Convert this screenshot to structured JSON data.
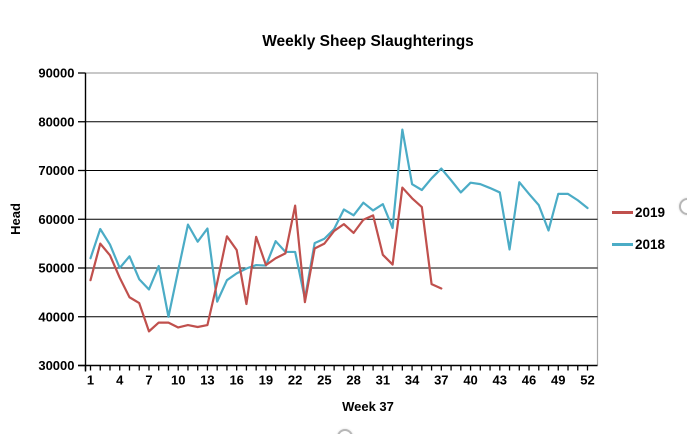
{
  "chart_data": {
    "type": "line",
    "title": "Weekly Sheep Slaughterings",
    "xlabel": "Week 37",
    "ylabel": "Head",
    "ylim": [
      30000,
      90000
    ],
    "xlim": [
      1,
      52
    ],
    "yticks": [
      30000,
      40000,
      50000,
      60000,
      70000,
      80000,
      90000
    ],
    "xticks": [
      1,
      4,
      7,
      10,
      13,
      16,
      19,
      22,
      25,
      28,
      31,
      34,
      37,
      40,
      43,
      46,
      49,
      52
    ],
    "grid": "horizontal",
    "legend_position": "right",
    "x_unit": "week",
    "series": [
      {
        "name": "2019",
        "color": "#C0504D",
        "start_week": 1,
        "values": [
          47500,
          55000,
          52600,
          48000,
          44000,
          42800,
          37000,
          38800,
          38800,
          37800,
          38300,
          37900,
          38300,
          47000,
          56500,
          53700,
          42600,
          56400,
          50600,
          52000,
          53000,
          62800,
          43000,
          54000,
          55000,
          57600,
          59000,
          57200,
          59900,
          60800,
          52700,
          50700,
          66500,
          64300,
          62500,
          46700,
          45800
        ]
      },
      {
        "name": "2018",
        "color": "#4BACC6",
        "start_week": 1,
        "values": [
          52000,
          58000,
          54800,
          50000,
          52400,
          47700,
          45600,
          50400,
          40000,
          49500,
          58900,
          55400,
          58100,
          43100,
          47500,
          48900,
          49900,
          50600,
          50500,
          55500,
          53300,
          53300,
          43700,
          55100,
          56000,
          58000,
          62000,
          60800,
          63400,
          61800,
          63100,
          58200,
          78400,
          67200,
          66000,
          68400,
          70400,
          68000,
          65500,
          67500,
          67200,
          66400,
          65500,
          53800,
          67600,
          65200,
          62900,
          57700,
          65200,
          65200,
          63900,
          62300
        ]
      }
    ],
    "axis_color": "#000000",
    "gridline_color": "#000000",
    "border_color": "#a6a6a6"
  }
}
